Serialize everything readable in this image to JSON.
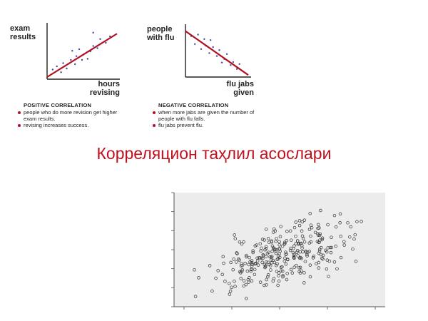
{
  "page": {
    "main_title": "Корреляцион таҳлил асослари",
    "line_color": "#b01020",
    "dot_color": "#4a4a9a",
    "title_color": "#c0101e"
  },
  "chart_data": [
    {
      "type": "scatter",
      "title": "POSITIVE CORRELATION",
      "ylabel": "exam results",
      "xlabel": "hours revising",
      "ylabel_lines": [
        "exam",
        "results"
      ],
      "xlabel_lines": [
        "hours",
        "revising"
      ],
      "xlim": [
        0,
        10
      ],
      "ylim": [
        0,
        10
      ],
      "trend": [
        [
          0,
          0.4
        ],
        [
          10,
          8.5
        ]
      ],
      "points": [
        [
          0.8,
          1.8
        ],
        [
          1.4,
          2.4
        ],
        [
          2.0,
          1.3
        ],
        [
          2.3,
          3.0
        ],
        [
          2.8,
          2.0
        ],
        [
          3.4,
          3.6
        ],
        [
          3.6,
          5.3
        ],
        [
          4.0,
          2.8
        ],
        [
          4.2,
          4.3
        ],
        [
          4.6,
          5.6
        ],
        [
          5.0,
          3.6
        ],
        [
          5.2,
          4.6
        ],
        [
          5.8,
          3.8
        ],
        [
          6.2,
          5.2
        ],
        [
          6.6,
          6.2
        ],
        [
          6.6,
          8.7
        ],
        [
          7.2,
          5.8
        ],
        [
          7.6,
          7.5
        ],
        [
          8.4,
          6.8
        ],
        [
          9.0,
          8.0
        ]
      ],
      "notes": [
        "people who do more revision get higher exam results.",
        "revising increases success."
      ]
    },
    {
      "type": "scatter",
      "title": "NEGATIVE CORRELATION",
      "ylabel": "people with flu",
      "xlabel": "flu jabs given",
      "ylabel_lines": [
        "people",
        "with flu"
      ],
      "xlabel_lines": [
        "flu jabs",
        "given"
      ],
      "xlim": [
        0,
        10
      ],
      "ylim": [
        0,
        10
      ],
      "trend": [
        [
          0,
          9.2
        ],
        [
          10,
          0.4
        ]
      ],
      "points": [
        [
          0.9,
          8.2
        ],
        [
          1.5,
          6.6
        ],
        [
          2.0,
          8.5
        ],
        [
          2.5,
          5.6
        ],
        [
          3.0,
          7.6
        ],
        [
          3.2,
          6.3
        ],
        [
          3.8,
          4.8
        ],
        [
          4.0,
          7.4
        ],
        [
          4.4,
          6.0
        ],
        [
          5.0,
          4.2
        ],
        [
          5.4,
          5.4
        ],
        [
          5.8,
          2.9
        ],
        [
          6.2,
          3.6
        ],
        [
          6.6,
          4.6
        ],
        [
          7.2,
          2.4
        ],
        [
          7.6,
          3.0
        ],
        [
          8.2,
          1.6
        ],
        [
          8.6,
          2.6
        ]
      ],
      "notes": [
        "when more jabs are given the number of people with flu falls.",
        "flu jabs prevent flu."
      ]
    },
    {
      "type": "scatter",
      "title": "",
      "xlim": [
        0,
        100
      ],
      "ylim": [
        0,
        100
      ],
      "grid": false,
      "x_ticks": 4,
      "y_ticks": 6,
      "background": "#ececec",
      "marker": "hollow-circle",
      "cluster": {
        "center": [
          52,
          45
        ],
        "spread": [
          16,
          15
        ],
        "count": 300
      }
    }
  ]
}
